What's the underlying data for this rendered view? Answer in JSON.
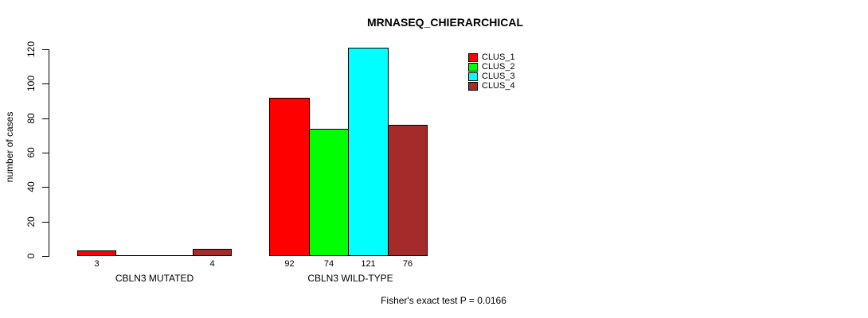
{
  "chart_data": {
    "type": "bar",
    "title": "MRNASEQ_CHIERARCHICAL",
    "ylabel": "number of cases",
    "xlabel": "",
    "categories": [
      "CBLN3 MUTATED",
      "CBLN3 WILD-TYPE"
    ],
    "series": [
      {
        "name": "CLUS_1",
        "color": "#FF0000",
        "values": [
          3,
          92
        ]
      },
      {
        "name": "CLUS_2",
        "color": "#00FF00",
        "values": [
          0,
          74
        ]
      },
      {
        "name": "CLUS_3",
        "color": "#00FFFF",
        "values": [
          0,
          121
        ]
      },
      {
        "name": "CLUS_4",
        "color": "#A52A2A",
        "values": [
          4,
          76
        ]
      }
    ],
    "yticks": [
      0,
      20,
      40,
      60,
      80,
      100,
      120
    ],
    "ylim": [
      0,
      120
    ],
    "grid": false,
    "legend_position": "top-right",
    "value_labels": "shown under each nonzero bar",
    "annotation": "Fisher's exact test P = 0.0166"
  }
}
